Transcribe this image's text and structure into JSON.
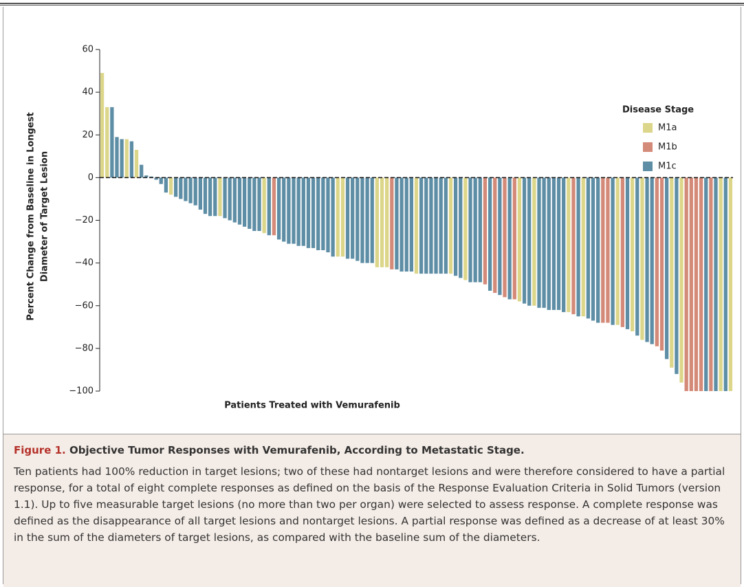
{
  "chart_data": {
    "type": "bar",
    "y_label": [
      "Percent Change from Baseline in Longest",
      "Diameter of Target Lesion"
    ],
    "x_label": "Patients Treated with Vemurafenib",
    "legend_title": "Disease Stage",
    "ylim": [
      -100,
      60
    ],
    "yticks": [
      {
        "value": -100,
        "label": "−100"
      },
      {
        "value": -80,
        "label": "−80"
      },
      {
        "value": -60,
        "label": "−60"
      },
      {
        "value": -40,
        "label": "−40"
      },
      {
        "value": -20,
        "label": "−20"
      },
      0,
      20,
      40,
      60
    ],
    "series": [
      {
        "name": "M1a",
        "color": "#dcd68a",
        "values": [
          49,
          33,
          null,
          null,
          null,
          18,
          null,
          13,
          null,
          null,
          null,
          null,
          null,
          null,
          -8,
          null,
          null,
          null,
          null,
          null,
          null,
          null,
          null,
          null,
          -18,
          null,
          null,
          null,
          null,
          null,
          null,
          null,
          null,
          -26,
          null,
          null,
          null,
          null,
          null,
          null,
          null,
          null,
          null,
          null,
          null,
          null,
          null,
          null,
          -37,
          -37,
          null,
          null,
          null,
          null,
          null,
          null,
          -42,
          -42,
          -42,
          null,
          null,
          null,
          null,
          null,
          -45,
          null,
          null,
          null,
          null,
          null,
          null,
          -45,
          null,
          null,
          -48,
          null,
          null,
          null,
          null,
          null,
          null,
          null,
          null,
          null,
          null,
          -58,
          null,
          null,
          -60,
          null,
          null,
          null,
          null,
          null,
          null,
          -63,
          null,
          null,
          -65,
          null,
          null,
          null,
          null,
          null,
          null,
          -69,
          null,
          null,
          -72,
          null,
          -76,
          null,
          null,
          null,
          null,
          null,
          -89,
          null,
          -96,
          null,
          null,
          null,
          null,
          null,
          null,
          null,
          -100,
          null,
          -100
        ]
      },
      {
        "name": "M1b",
        "color": "#d48a78",
        "values": [
          null,
          null,
          null,
          null,
          null,
          null,
          null,
          null,
          null,
          null,
          null,
          null,
          null,
          null,
          null,
          null,
          null,
          null,
          null,
          null,
          null,
          null,
          null,
          null,
          null,
          null,
          null,
          null,
          null,
          null,
          null,
          null,
          null,
          null,
          null,
          -27,
          null,
          null,
          null,
          null,
          null,
          null,
          null,
          null,
          null,
          null,
          null,
          null,
          null,
          null,
          null,
          null,
          null,
          null,
          null,
          null,
          null,
          null,
          null,
          -43,
          null,
          null,
          null,
          null,
          null,
          null,
          null,
          null,
          null,
          null,
          null,
          null,
          null,
          null,
          null,
          null,
          null,
          null,
          -50,
          null,
          -54,
          null,
          -56,
          null,
          -57,
          null,
          null,
          null,
          null,
          null,
          null,
          null,
          null,
          null,
          null,
          null,
          -64,
          null,
          null,
          null,
          null,
          null,
          -68,
          -68,
          null,
          null,
          -70,
          null,
          null,
          null,
          null,
          null,
          null,
          -79,
          -81,
          null,
          null,
          null,
          null,
          -100,
          -100,
          -100,
          -100,
          null,
          -100,
          null,
          null,
          null,
          null
        ]
      },
      {
        "name": "M1c",
        "color": "#5e8ea5",
        "values": [
          null,
          null,
          33,
          19,
          18,
          null,
          17,
          null,
          6,
          1,
          0.5,
          -1,
          -3,
          -7,
          null,
          -9,
          -10,
          -11,
          -12,
          -13,
          -15,
          -17,
          -18,
          -18,
          null,
          -19,
          -20,
          -21,
          -22,
          -23,
          -24,
          -25,
          -25,
          null,
          -27,
          null,
          -29,
          -30,
          -31,
          -31,
          -32,
          -32,
          -33,
          -33,
          -34,
          -34,
          -35,
          -37,
          null,
          null,
          -38,
          -38,
          -39,
          -40,
          -40,
          -40,
          null,
          null,
          null,
          null,
          -43,
          -44,
          -44,
          -44,
          null,
          -45,
          -45,
          -45,
          -45,
          -45,
          -45,
          null,
          -46,
          -47,
          null,
          -49,
          -49,
          -49,
          null,
          -53,
          null,
          -55,
          null,
          -57,
          null,
          null,
          -59,
          -60,
          null,
          -61,
          -61,
          -62,
          -62,
          -62,
          -63,
          null,
          null,
          -65,
          null,
          -66,
          -67,
          -68,
          null,
          null,
          -69,
          null,
          null,
          -71,
          null,
          -74,
          null,
          -77,
          -78,
          null,
          null,
          -85,
          null,
          -92,
          null,
          null,
          null,
          null,
          null,
          -100,
          null,
          -100,
          null,
          -100,
          null
        ]
      }
    ]
  },
  "caption": {
    "label": "Figure 1.",
    "title": "Objective Tumor Responses with Vemurafenib, According to Metastatic Stage.",
    "body": "Ten patients had 100% reduction in target lesions; two of these had nontarget lesions and were therefore considered to have a partial response, for a total of eight complete responses as defined on the basis of the Response Evaluation Criteria in Solid Tumors (version 1.1). Up to five measurable target lesions (no more than two per organ) were selected to assess response. A complete response was defined as the disappearance of all target lesions and nontarget lesions. A partial response was defined as a decrease of at least 30% in the sum of the diameters of target lesions, as compared with the baseline sum of the diameters."
  }
}
